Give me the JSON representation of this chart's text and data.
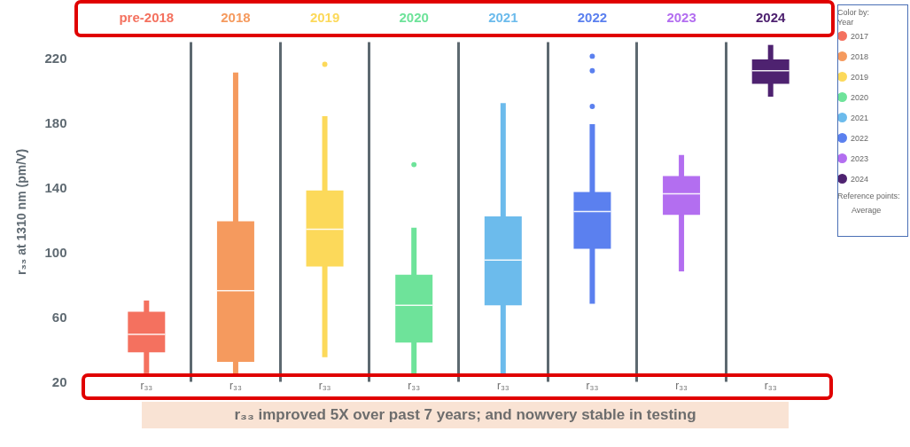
{
  "chart_data": {
    "type": "box",
    "categories": [
      "pre-2018",
      "2018",
      "2019",
      "2020",
      "2021",
      "2022",
      "2023",
      "2024"
    ],
    "ylabel": "r₃₃ at 1310 nm (pm/V)",
    "legend_title": "Color by:\nYear",
    "legend": "right",
    "grid": "x",
    "ylim": [
      20,
      230
    ],
    "yticks": [
      20,
      60,
      100,
      140,
      180,
      220
    ],
    "series": [
      {
        "name": "2017",
        "color": "#f4715f",
        "boxes": [
          {
            "low": 25,
            "q1": 38,
            "median": 49,
            "q3": 63,
            "high": 70
          },
          null,
          null,
          null,
          null,
          null,
          null,
          null
        ]
      },
      {
        "name": "2018",
        "color": "#f59a5e",
        "boxes": [
          null,
          {
            "low": 25,
            "q1": 32,
            "median": 76,
            "q3": 119,
            "high": 211
          },
          null,
          null,
          null,
          null,
          null,
          null
        ]
      },
      {
        "name": "2019",
        "color": "#fcd95a",
        "boxes": [
          null,
          null,
          {
            "low": 35,
            "q1": 91,
            "median": 114,
            "q3": 138,
            "high": 184,
            "outliers": [
              216
            ]
          },
          null,
          null,
          null,
          null,
          null
        ]
      },
      {
        "name": "2020",
        "color": "#6ee39a",
        "boxes": [
          null,
          null,
          null,
          {
            "low": 25,
            "q1": 44,
            "median": 67,
            "q3": 86,
            "high": 115,
            "outliers": [
              154
            ]
          },
          null,
          null,
          null,
          null
        ]
      },
      {
        "name": "2021",
        "color": "#6cbbec",
        "boxes": [
          null,
          null,
          null,
          null,
          {
            "low": 25,
            "q1": 67,
            "median": 95,
            "q3": 122,
            "high": 192
          },
          null,
          null,
          null
        ]
      },
      {
        "name": "2022",
        "color": "#5b80ef",
        "boxes": [
          null,
          null,
          null,
          null,
          null,
          {
            "low": 68,
            "q1": 102,
            "median": 125,
            "q3": 137,
            "high": 179,
            "outliers": [
              190,
              212,
              221
            ]
          },
          null,
          null
        ]
      },
      {
        "name": "2023",
        "color": "#b36ef0",
        "boxes": [
          null,
          null,
          null,
          null,
          null,
          null,
          {
            "low": 88,
            "q1": 123,
            "median": 136,
            "q3": 147,
            "high": 160
          },
          null
        ]
      },
      {
        "name": "2024",
        "color": "#4e2270",
        "boxes": [
          null,
          null,
          null,
          null,
          null,
          null,
          null,
          {
            "low": 196,
            "q1": 204,
            "median": 212,
            "q3": 219,
            "high": 228
          }
        ]
      }
    ],
    "annotations": [
      "r₃₃ improved 5X over past 7 years; and nowvery stable in testing",
      "Reference points:",
      "Average",
      "r₃₃",
      "r₃₃",
      "r₃₃",
      "r₃₃",
      "r₃₃",
      "r₃₃",
      "r₃₃",
      "r₃₃"
    ]
  }
}
